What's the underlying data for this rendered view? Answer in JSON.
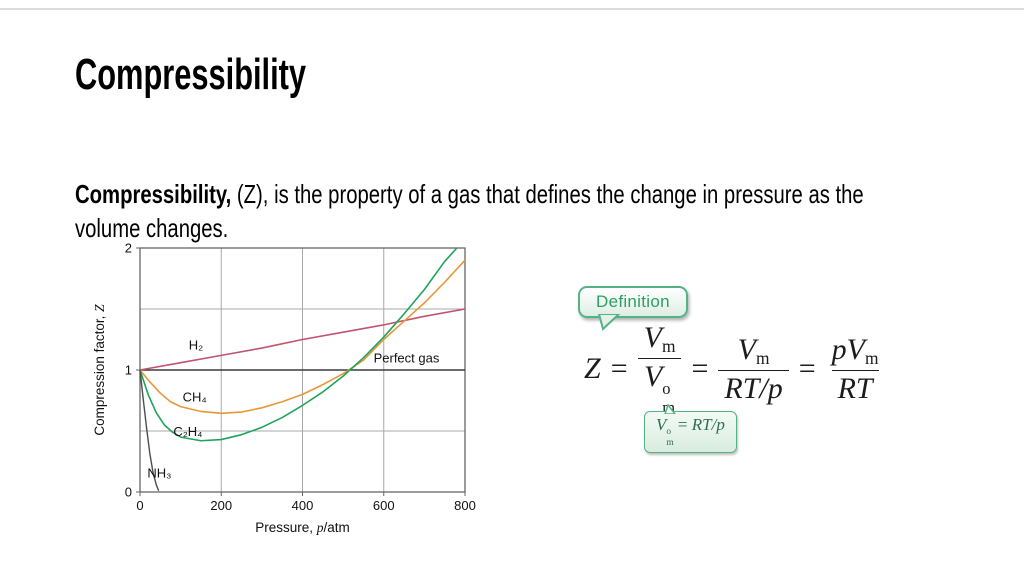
{
  "slide": {
    "title": "Compressibility",
    "body": {
      "bold": "Compressibility,",
      "line1_rest": " (Z), is the property of a gas that defines the change in pressure as the",
      "line2": "volume changes."
    }
  },
  "definition": {
    "callout_label": "Definition",
    "formula": {
      "lhs": "Z",
      "eq": "=",
      "f1": {
        "num_base": "V",
        "num_sub": "m",
        "den_base": "V",
        "den_sup": "o",
        "den_sub": "m"
      },
      "f2": {
        "num_base": "V",
        "num_sub": "m",
        "den": "RT/p"
      },
      "f3": {
        "num_pre": "p",
        "num_base": "V",
        "num_sub": "m",
        "den": "RT"
      }
    },
    "note": {
      "base": "V",
      "sup": "o",
      "sub": "m",
      "eq": "=",
      "rhs": "RT/p"
    }
  },
  "chart_data": {
    "type": "line",
    "xlabel_parts": [
      {
        "t": "Pressure, "
      },
      {
        "t": "p",
        "i": true
      },
      {
        "t": "/atm"
      }
    ],
    "ylabel_parts": [
      {
        "t": "Compression factor, "
      },
      {
        "t": "Z",
        "i": true
      }
    ],
    "xlim": [
      0,
      800
    ],
    "ylim": [
      0,
      2
    ],
    "xticks": [
      0,
      200,
      400,
      600,
      800
    ],
    "yticks": [
      0,
      1,
      2
    ],
    "grid_x": [
      200,
      400,
      600
    ],
    "grid_y": [
      0.5,
      1.5
    ],
    "frame_color": "#666666",
    "grid_color": "#a8a8a8",
    "series": [
      {
        "name": "Perfect gas",
        "color": "#3b3b3b",
        "width": 1.5,
        "x": [
          0,
          800
        ],
        "y": [
          1,
          1
        ]
      },
      {
        "name": "H₂",
        "color": "#c0546d",
        "width": 1.6,
        "x": [
          0,
          100,
          200,
          300,
          400,
          500,
          600,
          700,
          800
        ],
        "y": [
          1.0,
          1.06,
          1.12,
          1.18,
          1.25,
          1.31,
          1.37,
          1.44,
          1.5
        ]
      },
      {
        "name": "CH₄",
        "color": "#e8973a",
        "width": 1.6,
        "x": [
          0,
          25,
          50,
          75,
          100,
          150,
          200,
          250,
          300,
          350,
          400,
          450,
          500,
          550,
          600,
          650,
          700,
          750,
          800
        ],
        "y": [
          1.0,
          0.9,
          0.81,
          0.74,
          0.7,
          0.66,
          0.645,
          0.655,
          0.69,
          0.74,
          0.8,
          0.88,
          0.97,
          1.08,
          1.25,
          1.4,
          1.55,
          1.72,
          1.9
        ]
      },
      {
        "name": "C₂H₄",
        "color": "#1fa35c",
        "width": 1.6,
        "x": [
          0,
          20,
          40,
          60,
          80,
          100,
          150,
          200,
          250,
          300,
          350,
          400,
          450,
          500,
          550,
          600,
          650,
          700,
          750,
          780
        ],
        "y": [
          1.0,
          0.8,
          0.65,
          0.55,
          0.49,
          0.45,
          0.42,
          0.43,
          0.47,
          0.53,
          0.61,
          0.71,
          0.82,
          0.95,
          1.1,
          1.27,
          1.46,
          1.66,
          1.89,
          2.0
        ]
      },
      {
        "name": "NH₃",
        "color": "#4d4d4d",
        "width": 1.4,
        "x": [
          0,
          8,
          16,
          24,
          32,
          40,
          46
        ],
        "y": [
          1.0,
          0.76,
          0.53,
          0.32,
          0.16,
          0.06,
          0.01
        ]
      }
    ],
    "annotations": [
      {
        "text": "H₂",
        "x": 120,
        "y": 1.17,
        "anchor": "start"
      },
      {
        "text": "Perfect gas",
        "x": 575,
        "y": 1.06,
        "anchor": "start"
      },
      {
        "text": "CH₄",
        "x": 105,
        "y": 0.74,
        "anchor": "start"
      },
      {
        "text": "C₂H₄",
        "x": 82,
        "y": 0.46,
        "anchor": "start"
      },
      {
        "text": "NH₃",
        "x": 18,
        "y": 0.12,
        "anchor": "start"
      }
    ]
  }
}
